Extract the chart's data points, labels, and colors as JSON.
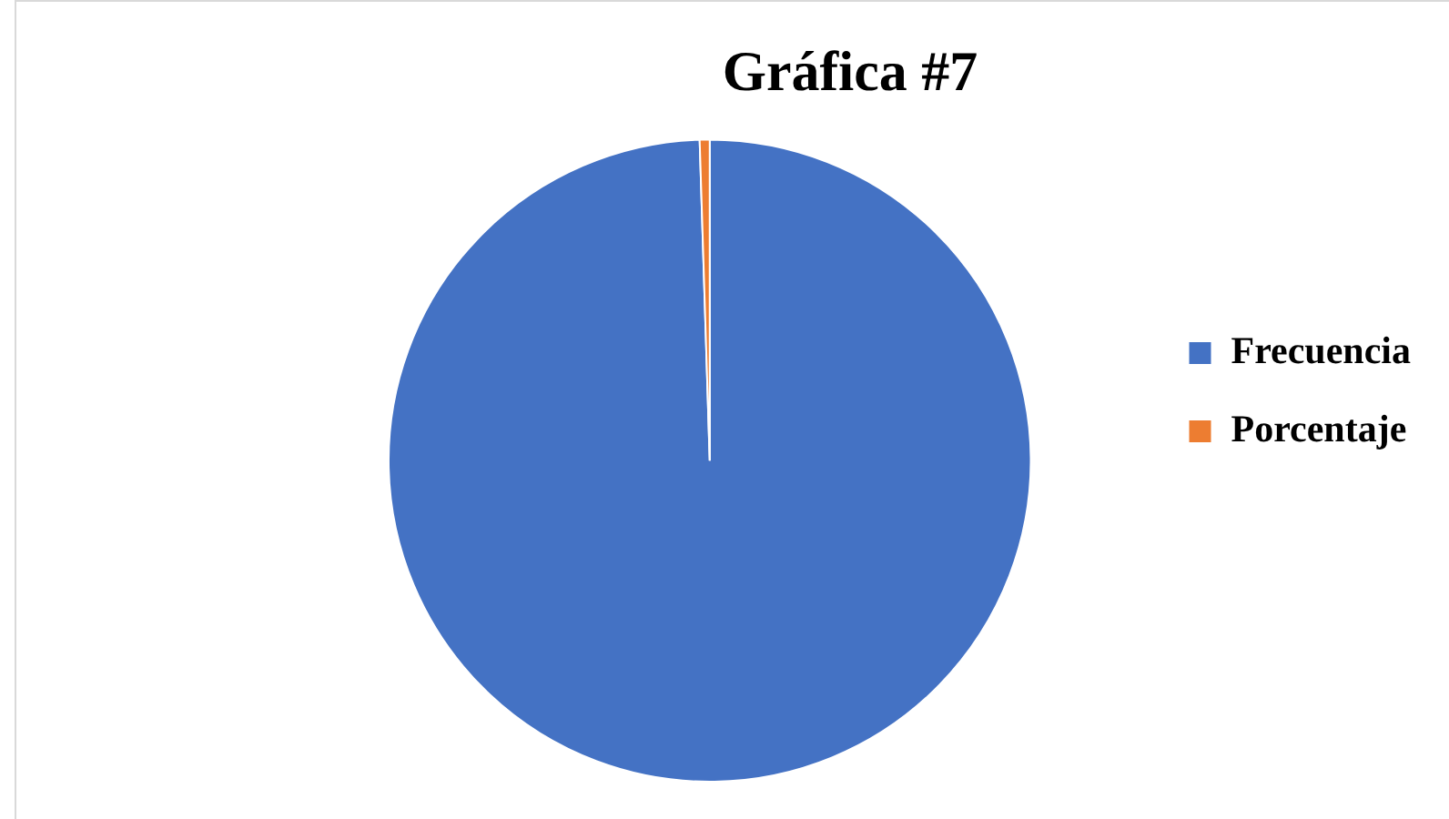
{
  "chart_data": {
    "type": "pie",
    "title": "Gráfica #7",
    "categories": [
      "Frecuencia",
      "Porcentaje"
    ],
    "values": [
      99.5,
      0.5
    ],
    "colors": [
      "#4472c4",
      "#ed7d31"
    ],
    "legend": "right"
  }
}
